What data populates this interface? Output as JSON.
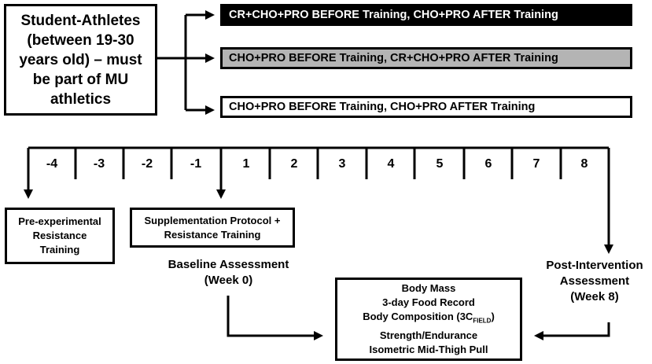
{
  "population": {
    "lines": [
      "Student-Athletes",
      "(between 19-30",
      "years old) – must",
      "be part of MU",
      "athletics"
    ]
  },
  "arms": [
    {
      "label": "CR+CHO+PRO BEFORE Training, CHO+PRO AFTER Training",
      "fill": "#000000",
      "text_color": "#ffffff"
    },
    {
      "label": "CHO+PRO BEFORE Training, CR+CHO+PRO AFTER Training",
      "fill": "#b4b4b4",
      "text_color": "#000000"
    },
    {
      "label": "CHO+PRO BEFORE Training, CHO+PRO AFTER Training",
      "fill": "#ffffff",
      "text_color": "#000000"
    }
  ],
  "weeks": [
    "-4",
    "-3",
    "-2",
    "-1",
    "1",
    "2",
    "3",
    "4",
    "5",
    "6",
    "7",
    "8"
  ],
  "pre_experimental": {
    "lines": [
      "Pre-experimental",
      "Resistance",
      "Training"
    ]
  },
  "supplementation": {
    "lines": [
      "Supplementation Protocol +",
      "Resistance Training"
    ]
  },
  "baseline": {
    "lines": [
      "Baseline Assessment",
      "(Week 0)"
    ]
  },
  "post": {
    "lines": [
      "Post-Intervention",
      "Assessment",
      "(Week 8)"
    ]
  },
  "outcomes": {
    "body_mass": "Body Mass",
    "food_record": "3-day Food Record",
    "body_comp_prefix": "Body Composition (3C",
    "body_comp_sub": "FIELD",
    "body_comp_suffix": ")",
    "strength": "Strength/Endurance",
    "imtp": "Isometric Mid-Thigh Pull"
  }
}
